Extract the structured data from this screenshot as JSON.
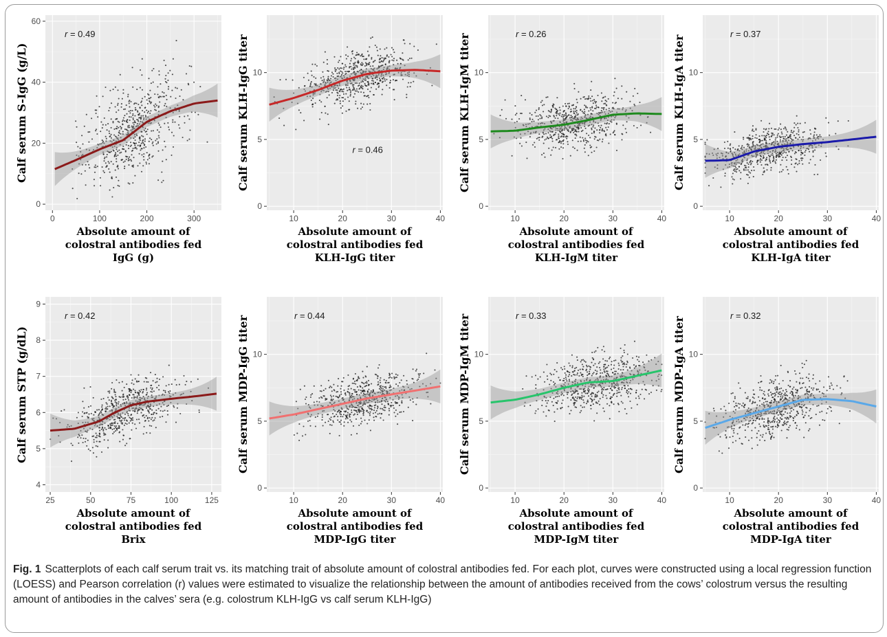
{
  "figure": {
    "caption_label": "Fig. 1",
    "caption_text": "Scatterplots of each calf serum trait vs. its matching trait of absolute amount of colostral antibodies fed. For each plot, curves were constructed using a local regression function (LOESS) and Pearson correlation (r) values were estimated to visualize the relationship between the amount of antibodies received from the cows’ colostrum versus the resulting amount of antibodies in the calves’ sera (e.g. colostrum KLH-IgG vs calf serum KLH-IgG)"
  },
  "chart_data": [
    {
      "type": "scatter",
      "panel": "s-igg",
      "ylabel": "Calf serum S-IgG (g/L)",
      "xlabel": [
        "Absolute amount of",
        "colostral antibodies fed",
        "IgG (g)"
      ],
      "annotation": "r = 0.49",
      "xlim": [
        -15,
        358
      ],
      "ylim": [
        -2,
        62
      ],
      "xticks": [
        0,
        100,
        200,
        300
      ],
      "yticks": [
        0,
        20,
        40,
        60
      ],
      "grid": true,
      "points": {
        "n": 620,
        "x_range": [
          5,
          350
        ],
        "x_center": 170,
        "y_spread": 11
      },
      "loess": {
        "color": "#8b1a1a",
        "x": [
          5,
          50,
          100,
          150,
          200,
          250,
          300,
          350
        ],
        "y": [
          11.5,
          14.5,
          18,
          21,
          27,
          30.5,
          33,
          34
        ]
      }
    },
    {
      "type": "scatter",
      "panel": "klh-igg",
      "ylabel": "Calf serum KLH-IgG titer",
      "xlabel": [
        "Absolute amount of",
        "colostral antibodies fed",
        "KLH-IgG titer"
      ],
      "annotation": "r = 0.46",
      "xlim": [
        4.5,
        40.5
      ],
      "ylim": [
        -0.3,
        14.3
      ],
      "xticks": [
        10,
        20,
        30,
        40
      ],
      "yticks": [
        0,
        5,
        10
      ],
      "grid": true,
      "points": {
        "n": 650,
        "x_range": [
          5,
          40
        ],
        "x_center": 23,
        "y_spread": 1.4
      },
      "loess": {
        "color": "#c62828",
        "x": [
          5,
          10,
          15,
          20,
          25,
          30,
          35,
          40
        ],
        "y": [
          7.6,
          8.1,
          8.7,
          9.4,
          9.9,
          10.15,
          10.2,
          10.1
        ]
      }
    },
    {
      "type": "scatter",
      "panel": "klh-igm",
      "ylabel": "Calf serum KLH-IgM titer",
      "xlabel": [
        "Absolute amount of",
        "colostral antibodies fed",
        "KLH-IgM titer"
      ],
      "annotation": "r = 0.26",
      "xlim": [
        4.5,
        40.5
      ],
      "ylim": [
        -0.3,
        14.3
      ],
      "xticks": [
        10,
        20,
        30,
        40
      ],
      "yticks": [
        0,
        5,
        10
      ],
      "grid": true,
      "points": {
        "n": 650,
        "x_range": [
          5,
          40
        ],
        "x_center": 22,
        "y_spread": 1.5
      },
      "loess": {
        "color": "#1e8a1e",
        "x": [
          5,
          10,
          15,
          20,
          25,
          30,
          35,
          40
        ],
        "y": [
          5.6,
          5.65,
          5.9,
          6.1,
          6.45,
          6.85,
          6.95,
          6.9
        ]
      }
    },
    {
      "type": "scatter",
      "panel": "klh-iga",
      "ylabel": "Calf serum KLH-IgA titer",
      "xlabel": [
        "Absolute amount of",
        "colostral antibodies fed",
        "KLH-IgA titer"
      ],
      "annotation": "r = 0.37",
      "xlim": [
        4.5,
        40.5
      ],
      "ylim": [
        -0.3,
        14.3
      ],
      "xticks": [
        10,
        20,
        30,
        40
      ],
      "yticks": [
        0,
        5,
        10
      ],
      "grid": true,
      "points": {
        "n": 650,
        "x_range": [
          5,
          40
        ],
        "x_center": 18,
        "y_spread": 1.2
      },
      "loess": {
        "color": "#1a1aaa",
        "x": [
          5,
          10,
          15,
          20,
          25,
          30,
          35,
          40
        ],
        "y": [
          3.4,
          3.45,
          4.1,
          4.45,
          4.65,
          4.8,
          5.0,
          5.2
        ]
      }
    },
    {
      "type": "scatter",
      "panel": "stp",
      "ylabel": "Calf serum STP (g/dL)",
      "xlabel": [
        "Absolute amount of",
        "colostral antibodies fed",
        "Brix"
      ],
      "annotation": "r = 0.42",
      "xlim": [
        22,
        131
      ],
      "ylim": [
        3.8,
        9.2
      ],
      "xticks": [
        25,
        50,
        75,
        100,
        125
      ],
      "yticks": [
        4,
        5,
        6,
        7,
        8,
        9
      ],
      "grid": true,
      "points": {
        "n": 620,
        "x_range": [
          25,
          128
        ],
        "x_center": 72,
        "y_spread": 0.55
      },
      "loess": {
        "color": "#8b1a1a",
        "x": [
          25,
          40,
          55,
          65,
          75,
          85,
          100,
          115,
          128
        ],
        "y": [
          5.5,
          5.55,
          5.75,
          6.0,
          6.2,
          6.3,
          6.38,
          6.45,
          6.52
        ]
      }
    },
    {
      "type": "scatter",
      "panel": "mdp-igg",
      "ylabel": "Calf serum MDP-IgG titer",
      "xlabel": [
        "Absolute amount of",
        "colostral antibodies fed",
        "MDP-IgG titer"
      ],
      "annotation": "r = 0.44",
      "xlim": [
        4.5,
        40.5
      ],
      "ylim": [
        -0.3,
        14.3
      ],
      "xticks": [
        10,
        20,
        30,
        40
      ],
      "yticks": [
        0,
        5,
        10
      ],
      "grid": true,
      "points": {
        "n": 650,
        "x_range": [
          5,
          40
        ],
        "x_center": 24,
        "y_spread": 1.3
      },
      "loess": {
        "color": "#f07070",
        "x": [
          5,
          10,
          15,
          20,
          25,
          30,
          35,
          40
        ],
        "y": [
          5.2,
          5.5,
          5.9,
          6.3,
          6.7,
          7.0,
          7.3,
          7.6
        ]
      }
    },
    {
      "type": "scatter",
      "panel": "mdp-igm",
      "ylabel": "Calf serum MDP-IgM titer",
      "xlabel": [
        "Absolute amount of",
        "colostral antibodies fed",
        "MDP-IgM titer"
      ],
      "annotation": "r = 0.33",
      "xlim": [
        4.5,
        40.5
      ],
      "ylim": [
        -0.3,
        14.3
      ],
      "xticks": [
        10,
        20,
        30,
        40
      ],
      "yticks": [
        0,
        5,
        10
      ],
      "grid": true,
      "points": {
        "n": 650,
        "x_range": [
          5,
          40
        ],
        "x_center": 26,
        "y_spread": 1.4
      },
      "loess": {
        "color": "#27c46b",
        "x": [
          5,
          10,
          15,
          20,
          25,
          30,
          35,
          40
        ],
        "y": [
          6.4,
          6.6,
          7.0,
          7.5,
          7.9,
          8.0,
          8.4,
          8.8
        ]
      }
    },
    {
      "type": "scatter",
      "panel": "mdp-iga",
      "ylabel": "Calf serum MDP-IgA titer",
      "xlabel": [
        "Absolute amount of",
        "colostral antibodies fed",
        "MDP-IgA titer"
      ],
      "annotation": "r = 0.32",
      "xlim": [
        4.5,
        40.5
      ],
      "ylim": [
        -0.3,
        14.3
      ],
      "xticks": [
        10,
        20,
        30,
        40
      ],
      "yticks": [
        0,
        5,
        10
      ],
      "grid": true,
      "points": {
        "n": 650,
        "x_range": [
          5,
          40
        ],
        "x_center": 19,
        "y_spread": 1.5
      },
      "loess": {
        "color": "#5aa8e8",
        "x": [
          5,
          10,
          15,
          20,
          25,
          30,
          35,
          40
        ],
        "y": [
          4.5,
          5.1,
          5.6,
          6.1,
          6.6,
          6.65,
          6.5,
          6.1
        ]
      }
    }
  ]
}
